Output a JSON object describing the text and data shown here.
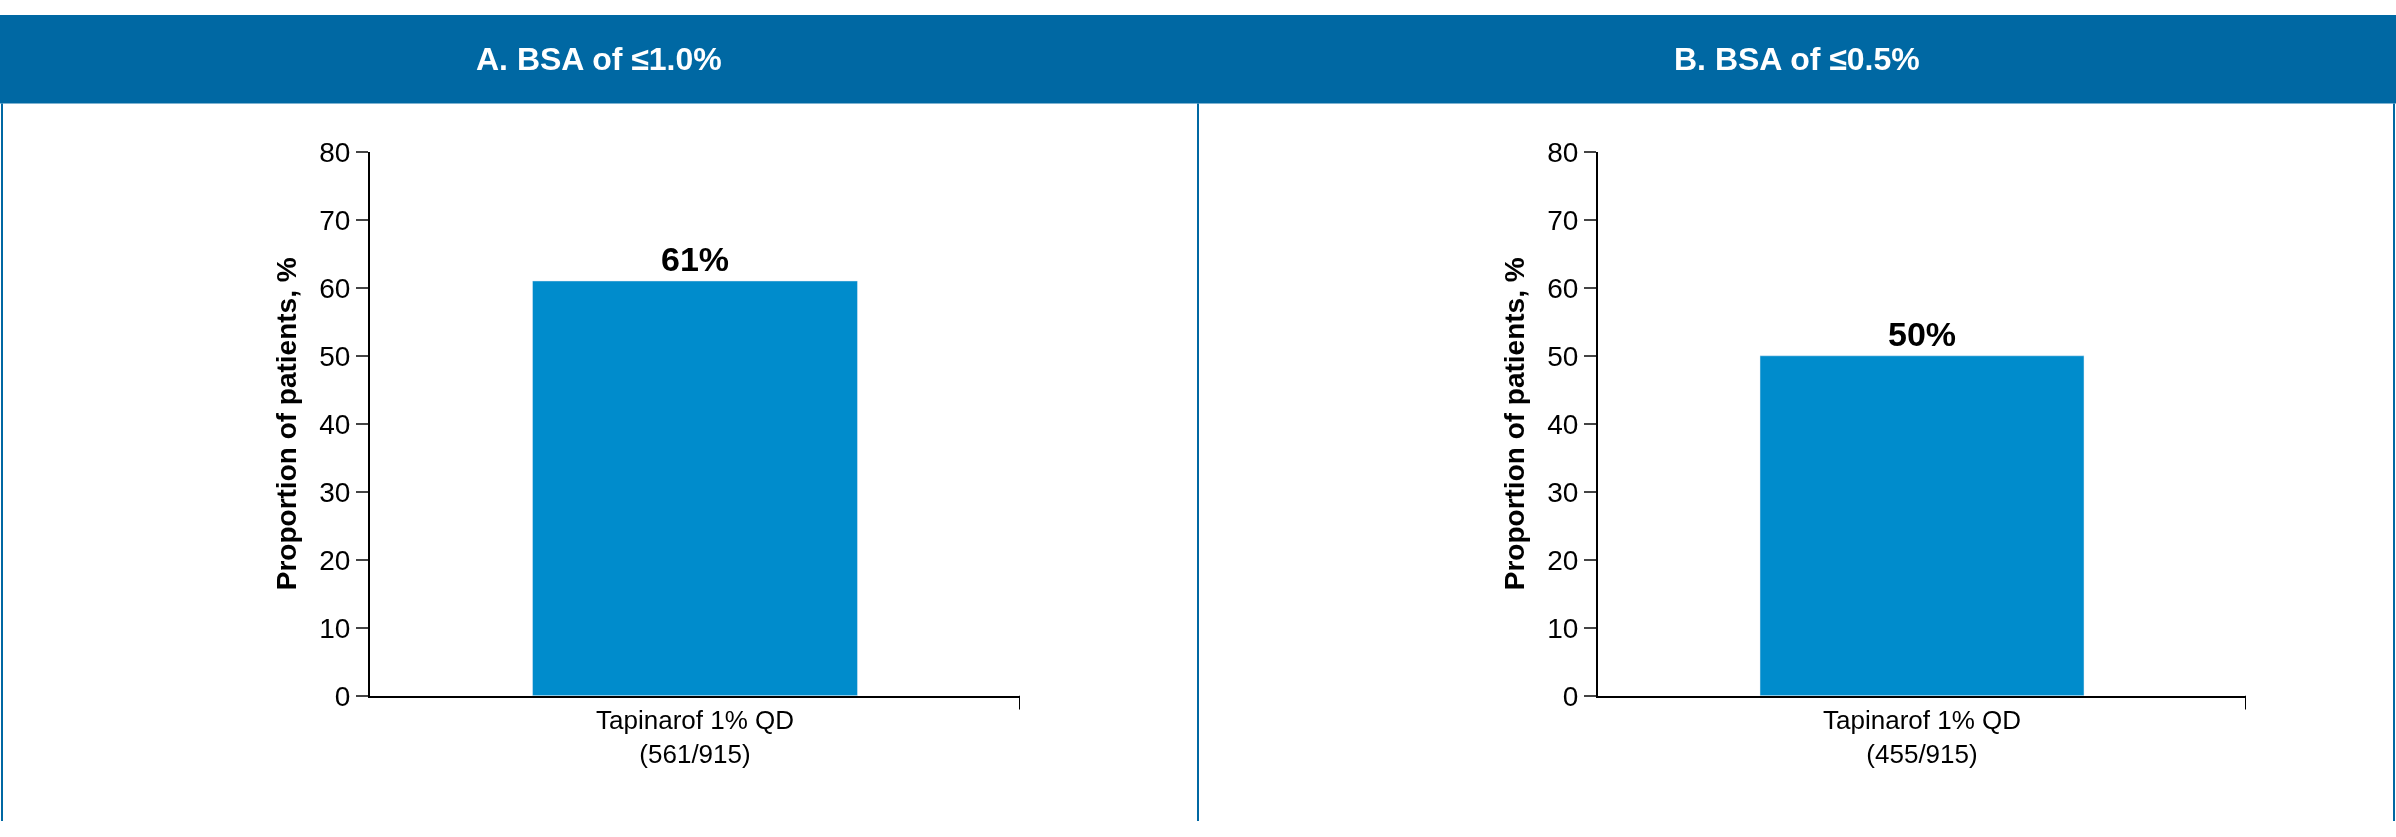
{
  "chart_data": [
    {
      "type": "bar",
      "title": "A. BSA of ≤1.0%",
      "ylabel": "Proportion of patients, %",
      "categories": [
        "Tapinarof 1% QD\n(561/915)"
      ],
      "values": [
        61
      ],
      "value_labels": [
        "61%"
      ],
      "color": "#008ccc",
      "ylim": [
        0,
        80
      ],
      "yticks": [
        0,
        10,
        20,
        30,
        40,
        50,
        60,
        70,
        80
      ]
    },
    {
      "type": "bar",
      "title": "B. BSA of ≤0.5%",
      "ylabel": "Proportion of patients, %",
      "categories": [
        "Tapinarof 1% QD\n(455/915)"
      ],
      "values": [
        50
      ],
      "value_labels": [
        "50%"
      ],
      "color": "#008ccc",
      "ylim": [
        0,
        80
      ],
      "yticks": [
        0,
        10,
        20,
        30,
        40,
        50,
        60,
        70,
        80
      ]
    }
  ]
}
